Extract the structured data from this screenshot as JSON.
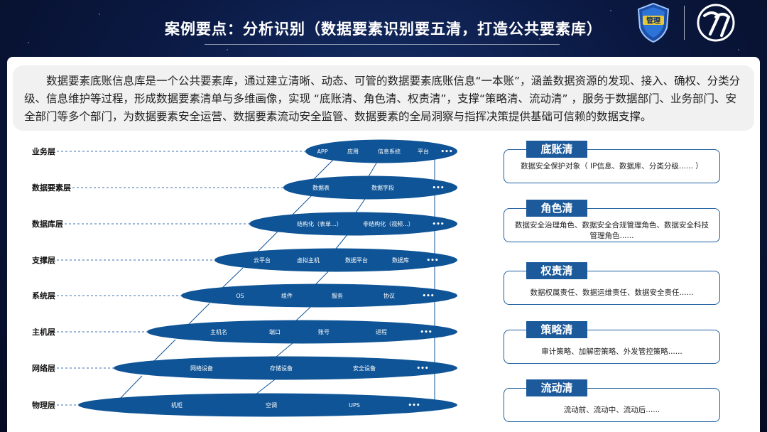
{
  "slide": {
    "title": "案例要点：分析识别（数据要素识别要五清，打造公共要素库）",
    "intro": "数据要素底账信息库是一个公共要素库，通过建立清晰、动态、可管的数据要素底账信息“一本账”，涵盖数据资源的发现、接入、确权、分类分级、信息维护等过程，形成数据要素清单与多维画像，实现 “底账清、角色清、权责清”，支撑“策略清、流动清” ，服务于数据部门、业务部门、安全部门等多个部门，为数据要素安全运营、数据要素流动安全监管、数据要素的全局洞察与指挥决策提供基础可信赖的数据支撑。"
  },
  "layers": [
    {
      "label": "业务层",
      "items": [
        "APP",
        "应用",
        "信息系统",
        "平台",
        "•••"
      ]
    },
    {
      "label": "数据要素层",
      "items": [
        "数据表",
        "数据字段",
        "•••"
      ]
    },
    {
      "label": "数据库层",
      "items": [
        "结构化（表单...）",
        "非结构化（视频...）",
        "•••"
      ]
    },
    {
      "label": "支撑层",
      "items": [
        "云平台",
        "虚拟主机",
        "数据平台",
        "数据库",
        "•••"
      ]
    },
    {
      "label": "系统层",
      "items": [
        "OS",
        "组件",
        "服务",
        "协议",
        "•••"
      ]
    },
    {
      "label": "主机层",
      "items": [
        "主机名",
        "端口",
        "账号",
        "进程",
        "•••"
      ]
    },
    {
      "label": "网络层",
      "items": [
        "网络设备",
        "存储设备",
        "安全设备",
        "•••"
      ]
    },
    {
      "label": "物理层",
      "items": [
        "机柜",
        "空调",
        "UPS",
        "•••"
      ]
    }
  ],
  "cards": [
    {
      "title": "底账清",
      "body": "数据安全保护对象（ IP信息、数据库、分类分级...... ）"
    },
    {
      "title": "角色清",
      "body": "数据安全治理角色、数据安全合规管理角色、数据安全科技管理角色......"
    },
    {
      "title": "权责清",
      "body": "数据权属责任、数据运维责任、数据安全责任......"
    },
    {
      "title": "策略清",
      "body": "审计策略、加解密策略、外发管控策略......"
    },
    {
      "title": "流动清",
      "body": "流动前、流动中、流动后......"
    }
  ],
  "badge_text": "管理",
  "colors": {
    "ellipse": "#0f5496",
    "card_header": "#1c5a9b",
    "card_border": "#1f5fa0",
    "background": "#0b1a44"
  }
}
